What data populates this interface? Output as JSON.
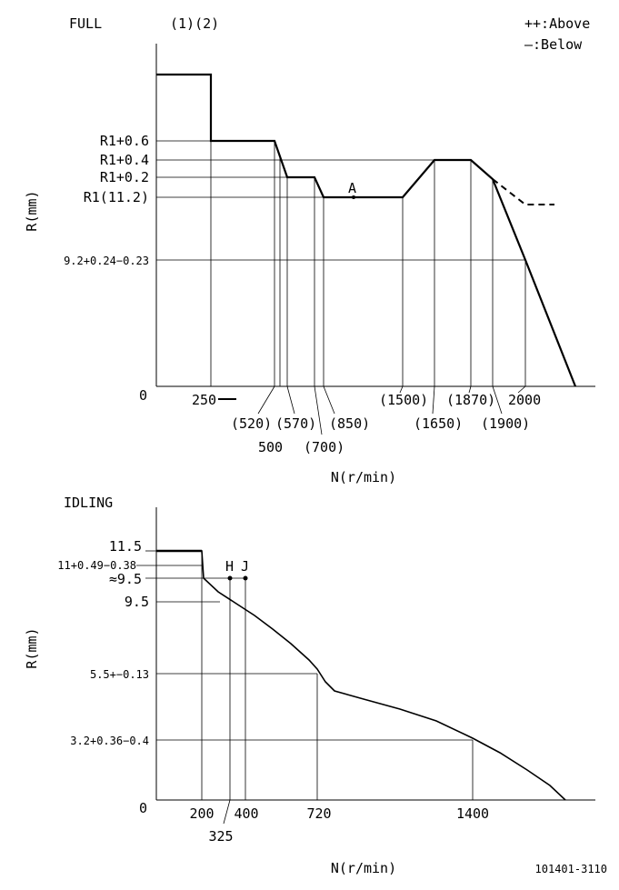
{
  "figure_id": "101401-3110",
  "chart_data": [
    {
      "type": "line",
      "title": "FULL",
      "subtitle": "(1)(2)",
      "legend": [
        "++:Above",
        "—:Below"
      ],
      "xlabel": "N(r/min)",
      "ylabel": "R(mm)",
      "y_origin_label": "0",
      "x_tick_labels": [
        "250",
        "(520)",
        "500",
        "(570)",
        "(700)",
        "(850)",
        "(1500)",
        "(1650)",
        "(1870)",
        "(1900)",
        "2000"
      ],
      "y_tick_labels": [
        "R1+0.6",
        "R1+0.4",
        "R1+0.2",
        "R1(11.2)",
        "9.2+0.24−0.23"
      ],
      "annotations": [
        "A"
      ],
      "series": [
        {
          "style": "solid",
          "x": [
            0,
            250,
            250,
            500,
            570,
            700,
            720,
            1470,
            1640,
            1870,
            1990,
            2050,
            2300
          ],
          "y": [
            14.0,
            14.0,
            11.8,
            11.8,
            11.4,
            11.4,
            11.2,
            11.2,
            11.6,
            11.6,
            11.4,
            10.5,
            0
          ]
        },
        {
          "style": "dashed",
          "x": [
            1990,
            2160,
            2290
          ],
          "y": [
            11.4,
            11.15,
            11.15
          ]
        }
      ],
      "point_A": {
        "x": 945,
        "y": 11.2
      }
    },
    {
      "type": "line",
      "title": "IDLING",
      "xlabel": "N(r/min)",
      "ylabel": "R(mm)",
      "y_origin_label": "0",
      "x_tick_labels": [
        "200",
        "325",
        "400",
        "720",
        "1400"
      ],
      "y_tick_labels": [
        "11.5",
        "11+0.49−0.38",
        "≈9.5",
        "9.5",
        "5.5+−0.13",
        "3.2+0.36−0.4"
      ],
      "annotations": [
        "H",
        "J"
      ],
      "series": [
        {
          "style": "solid",
          "x": [
            0,
            220,
            225,
            300,
            400,
            500,
            650,
            720,
            790,
            1000,
            1200,
            1400,
            1600,
            1780
          ],
          "y": [
            11.5,
            11.5,
            10.1,
            9.3,
            8.6,
            7.8,
            6.4,
            5.5,
            4.8,
            4.5,
            4.0,
            3.2,
            2.1,
            0.5
          ]
        }
      ],
      "point_H": {
        "x": 325,
        "y": 9.5
      },
      "point_J": {
        "x": 400,
        "y": 9.5
      }
    }
  ]
}
